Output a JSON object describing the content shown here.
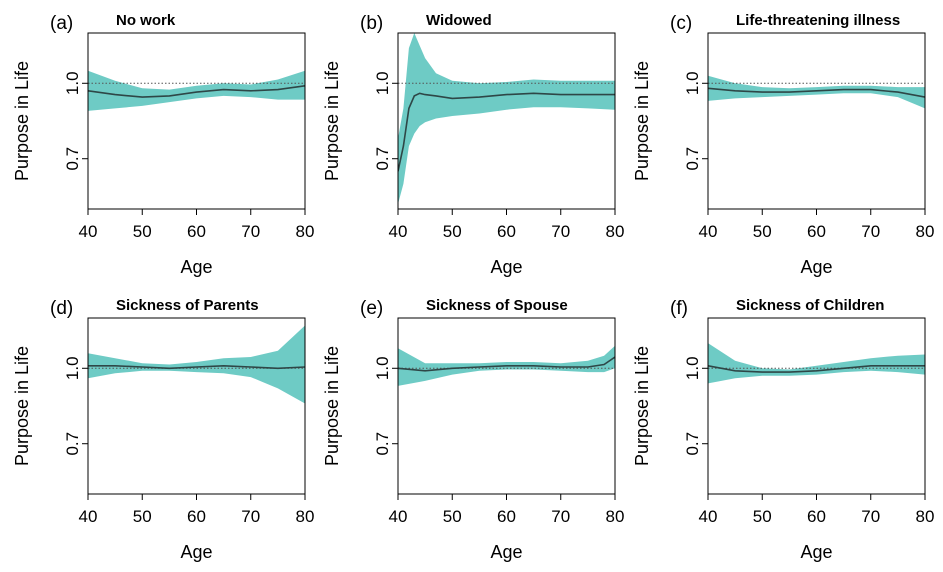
{
  "colors": {
    "band": "#6ecbc5",
    "line": "#2e4747",
    "ref": "#555555",
    "frame": "#000000"
  },
  "chart_data": [
    {
      "type": "area",
      "tag": "(a)",
      "title": "No work",
      "xlabel": "Age",
      "ylabel": "Purpose in Life",
      "xlim": [
        40,
        80
      ],
      "ylim": [
        0.5,
        1.2
      ],
      "yticks": [
        "1.0",
        "0.7"
      ],
      "xticks": [
        40,
        50,
        60,
        70,
        80
      ],
      "reference_line": 1.0,
      "grid": false,
      "x": [
        40,
        45,
        50,
        55,
        60,
        65,
        70,
        75,
        80
      ],
      "estimate": [
        0.97,
        0.955,
        0.945,
        0.95,
        0.965,
        0.975,
        0.97,
        0.975,
        0.99
      ],
      "lower": [
        0.89,
        0.9,
        0.91,
        0.925,
        0.94,
        0.95,
        0.945,
        0.935,
        0.935
      ],
      "upper": [
        1.05,
        1.01,
        0.98,
        0.975,
        0.99,
        1.0,
        0.995,
        1.015,
        1.05
      ]
    },
    {
      "type": "area",
      "tag": "(b)",
      "title": "Widowed",
      "xlabel": "Age",
      "ylabel": "Purpose in Life",
      "xlim": [
        40,
        80
      ],
      "ylim": [
        0.5,
        1.2
      ],
      "yticks": [
        "1.0",
        "0.7"
      ],
      "xticks": [
        40,
        50,
        60,
        70,
        80
      ],
      "reference_line": 1.0,
      "grid": false,
      "x": [
        40,
        41,
        42,
        43,
        44,
        45,
        47,
        50,
        55,
        60,
        65,
        70,
        75,
        80
      ],
      "estimate": [
        0.65,
        0.75,
        0.9,
        0.95,
        0.96,
        0.955,
        0.95,
        0.94,
        0.945,
        0.955,
        0.96,
        0.955,
        0.955,
        0.955
      ],
      "lower": [
        0.52,
        0.6,
        0.75,
        0.8,
        0.83,
        0.845,
        0.86,
        0.87,
        0.88,
        0.895,
        0.905,
        0.905,
        0.9,
        0.895
      ],
      "upper": [
        0.78,
        0.9,
        1.14,
        1.2,
        1.15,
        1.1,
        1.04,
        1.01,
        1.0,
        1.005,
        1.015,
        1.01,
        1.01,
        1.01
      ]
    },
    {
      "type": "area",
      "tag": "(c)",
      "title": "Life-threatening illness",
      "xlabel": "Age",
      "ylabel": "Purpose in Life",
      "xlim": [
        40,
        80
      ],
      "ylim": [
        0.5,
        1.2
      ],
      "yticks": [
        "1.0",
        "0.7"
      ],
      "xticks": [
        40,
        50,
        60,
        70,
        80
      ],
      "reference_line": 1.0,
      "grid": false,
      "x": [
        40,
        45,
        50,
        55,
        60,
        65,
        70,
        75,
        80
      ],
      "estimate": [
        0.98,
        0.97,
        0.965,
        0.965,
        0.97,
        0.975,
        0.975,
        0.965,
        0.945
      ],
      "lower": [
        0.93,
        0.94,
        0.945,
        0.95,
        0.955,
        0.96,
        0.96,
        0.945,
        0.9
      ],
      "upper": [
        1.03,
        1.0,
        0.985,
        0.98,
        0.985,
        0.99,
        0.99,
        0.985,
        0.985
      ]
    },
    {
      "type": "area",
      "tag": "(d)",
      "title": "Sickness of Parents",
      "xlabel": "Age",
      "ylabel": "Purpose in Life",
      "xlim": [
        40,
        80
      ],
      "ylim": [
        0.5,
        1.2
      ],
      "yticks": [
        "1.0",
        "0.7"
      ],
      "xticks": [
        40,
        50,
        60,
        70,
        80
      ],
      "reference_line": 1.0,
      "grid": false,
      "x": [
        40,
        45,
        50,
        55,
        60,
        65,
        70,
        75,
        80
      ],
      "estimate": [
        1.01,
        1.01,
        1.005,
        1.0,
        1.005,
        1.01,
        1.005,
        1.0,
        1.005
      ],
      "lower": [
        0.96,
        0.98,
        0.99,
        0.99,
        0.985,
        0.98,
        0.965,
        0.92,
        0.86
      ],
      "upper": [
        1.06,
        1.04,
        1.02,
        1.015,
        1.025,
        1.04,
        1.045,
        1.07,
        1.17
      ]
    },
    {
      "type": "area",
      "tag": "(e)",
      "title": "Sickness of Spouse",
      "xlabel": "Age",
      "ylabel": "Purpose in Life",
      "xlim": [
        40,
        80
      ],
      "ylim": [
        0.5,
        1.2
      ],
      "yticks": [
        "1.0",
        "0.7"
      ],
      "xticks": [
        40,
        50,
        60,
        70,
        80
      ],
      "reference_line": 1.0,
      "grid": false,
      "x": [
        40,
        45,
        50,
        55,
        60,
        65,
        70,
        75,
        78,
        80
      ],
      "estimate": [
        1.0,
        0.99,
        1.0,
        1.005,
        1.01,
        1.01,
        1.005,
        1.005,
        1.015,
        1.045
      ],
      "lower": [
        0.93,
        0.95,
        0.975,
        0.99,
        0.995,
        0.995,
        0.99,
        0.985,
        0.985,
        1.0
      ],
      "upper": [
        1.08,
        1.02,
        1.02,
        1.02,
        1.025,
        1.025,
        1.02,
        1.03,
        1.05,
        1.09
      ]
    },
    {
      "type": "area",
      "tag": "(f)",
      "title": "Sickness of Children",
      "xlabel": "Age",
      "ylabel": "Purpose in Life",
      "xlim": [
        40,
        80
      ],
      "ylim": [
        0.5,
        1.2
      ],
      "yticks": [
        "1.0",
        "0.7"
      ],
      "xticks": [
        40,
        50,
        60,
        70,
        80
      ],
      "reference_line": 1.0,
      "grid": false,
      "x": [
        40,
        45,
        50,
        55,
        60,
        65,
        70,
        75,
        80
      ],
      "estimate": [
        1.01,
        0.99,
        0.985,
        0.985,
        0.99,
        1.0,
        1.01,
        1.01,
        1.01
      ],
      "lower": [
        0.94,
        0.96,
        0.97,
        0.97,
        0.975,
        0.985,
        0.99,
        0.985,
        0.975
      ],
      "upper": [
        1.1,
        1.03,
        1.0,
        0.995,
        1.01,
        1.025,
        1.04,
        1.05,
        1.055
      ]
    }
  ]
}
